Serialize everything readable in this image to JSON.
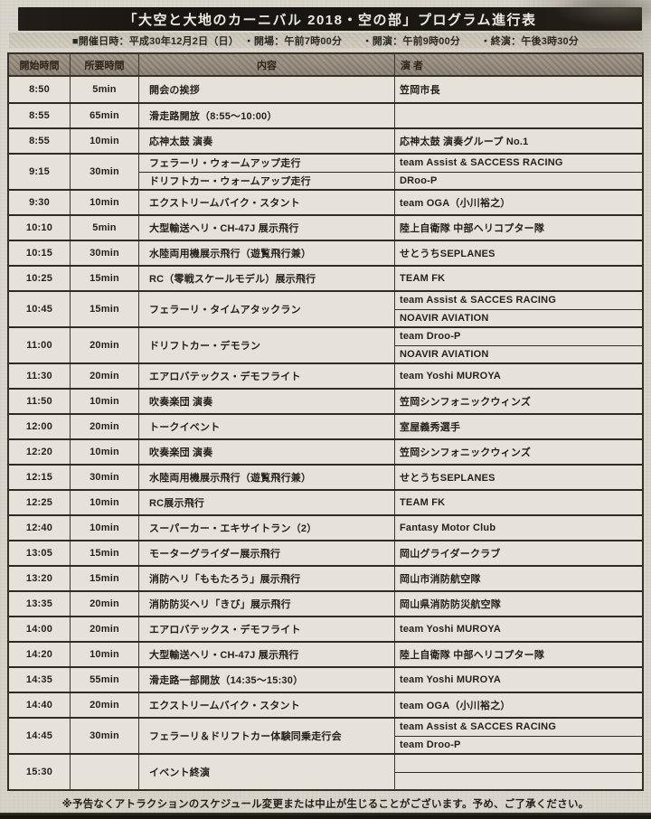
{
  "title": "「大空と大地のカーニバル 2018・空の部」プログラム進行表",
  "subtitle": "■開催日時：平成30年12月2日（日）　・開場：午前7時00分　　・開演：午前9時00分　　・終演：午後3時30分",
  "footer": "※予告なくアトラクションのスケジュール変更または中止が生じることがございます。予め、ご了承ください。",
  "colors": {
    "paper": "#d8d3c9",
    "ink": "#241f19",
    "title_bar": "#1b1813",
    "header_bg": "#a89e90",
    "line": "#36302a"
  },
  "table": {
    "headers": [
      "開始時間",
      "所要時間",
      "内容",
      "演 者"
    ],
    "rows": [
      {
        "start": "8:50",
        "duration": "5min",
        "content": [
          "開会の挨拶"
        ],
        "performers": [
          "笠岡市長"
        ]
      },
      {
        "start": "8:55",
        "duration": "65min",
        "content": [
          "滑走路開放（8:55～10:00）"
        ],
        "performers": [
          ""
        ]
      },
      {
        "start": "8:55",
        "duration": "10min",
        "content": [
          "応神太鼓 演奏"
        ],
        "performers": [
          "応神太鼓 演奏グループ No.1"
        ]
      },
      {
        "start": "9:15",
        "duration": "30min",
        "content": [
          "フェラーリ・ウォームアップ走行",
          "ドリフトカー・ウォームアップ走行"
        ],
        "performers": [
          "team Assist & SACCESS RACING",
          "DRoo-P"
        ]
      },
      {
        "start": "9:30",
        "duration": "10min",
        "content": [
          "エクストリームバイク・スタント"
        ],
        "performers": [
          "team OGA（小川裕之）"
        ]
      },
      {
        "start": "10:10",
        "duration": "5min",
        "content": [
          "大型輸送ヘリ・CH-47J 展示飛行"
        ],
        "performers": [
          "陸上自衛隊 中部ヘリコプター隊"
        ]
      },
      {
        "start": "10:15",
        "duration": "30min",
        "content": [
          "水陸両用機展示飛行（遊覧飛行兼）"
        ],
        "performers": [
          "せとうちSEPLANES"
        ]
      },
      {
        "start": "10:25",
        "duration": "15min",
        "content": [
          "RC（零戦スケールモデル）展示飛行"
        ],
        "performers": [
          "TEAM FK"
        ]
      },
      {
        "start": "10:45",
        "duration": "15min",
        "content": [
          "フェラーリ・タイムアタックラン"
        ],
        "performers": [
          "team Assist & SACCES RACING",
          "NOAVIR AVIATION"
        ]
      },
      {
        "start": "11:00",
        "duration": "20min",
        "content": [
          "ドリフトカー・デモラン"
        ],
        "performers": [
          "team Droo-P",
          "NOAVIR AVIATION"
        ]
      },
      {
        "start": "11:30",
        "duration": "20min",
        "content": [
          "エアロバテックス・デモフライト"
        ],
        "performers": [
          "team Yoshi MUROYA"
        ]
      },
      {
        "start": "11:50",
        "duration": "10min",
        "content": [
          "吹奏楽団 演奏"
        ],
        "performers": [
          "笠岡シンフォニックウィンズ"
        ]
      },
      {
        "start": "12:00",
        "duration": "20min",
        "content": [
          "トークイベント"
        ],
        "performers": [
          "室屋義秀選手"
        ]
      },
      {
        "start": "12:20",
        "duration": "10min",
        "content": [
          "吹奏楽団 演奏"
        ],
        "performers": [
          "笠岡シンフォニックウィンズ"
        ]
      },
      {
        "start": "12:15",
        "duration": "30min",
        "content": [
          "水陸両用機展示飛行（遊覧飛行兼）"
        ],
        "performers": [
          "せとうちSEPLANES"
        ]
      },
      {
        "start": "12:25",
        "duration": "10min",
        "content": [
          "RC展示飛行"
        ],
        "performers": [
          "TEAM FK"
        ]
      },
      {
        "start": "12:40",
        "duration": "10min",
        "content": [
          "スーパーカー・エキサイトラン（2）"
        ],
        "performers": [
          "Fantasy Motor Club"
        ]
      },
      {
        "start": "13:05",
        "duration": "15min",
        "content": [
          "モーターグライダー展示飛行"
        ],
        "performers": [
          "岡山グライダークラブ"
        ]
      },
      {
        "start": "13:20",
        "duration": "15min",
        "content": [
          "消防ヘリ「ももたろう」展示飛行"
        ],
        "performers": [
          "岡山市消防航空隊"
        ]
      },
      {
        "start": "13:35",
        "duration": "20min",
        "content": [
          "消防防災ヘリ「きび」展示飛行"
        ],
        "performers": [
          "岡山県消防防災航空隊"
        ]
      },
      {
        "start": "14:00",
        "duration": "20min",
        "content": [
          "エアロバテックス・デモフライト"
        ],
        "performers": [
          "team Yoshi MUROYA"
        ]
      },
      {
        "start": "14:20",
        "duration": "10min",
        "content": [
          "大型輸送ヘリ・CH-47J 展示飛行"
        ],
        "performers": [
          "陸上自衛隊 中部ヘリコプター隊"
        ]
      },
      {
        "start": "14:35",
        "duration": "55min",
        "content": [
          "滑走路一部開放（14:35～15:30）"
        ],
        "performers": [
          "team Yoshi MUROYA"
        ]
      },
      {
        "start": "14:40",
        "duration": "20min",
        "content": [
          "エクストリームバイク・スタント"
        ],
        "performers": [
          "team OGA（小川裕之）"
        ]
      },
      {
        "start": "14:45",
        "duration": "30min",
        "content": [
          "フェラーリ＆ドリフトカー体験同乗走行会"
        ],
        "performers": [
          "team Assist & SACCES RACING",
          "team Droo-P"
        ]
      },
      {
        "start": "15:30",
        "duration": "",
        "content": [
          "イベント終演"
        ],
        "performers": [
          "",
          ""
        ]
      }
    ]
  }
}
